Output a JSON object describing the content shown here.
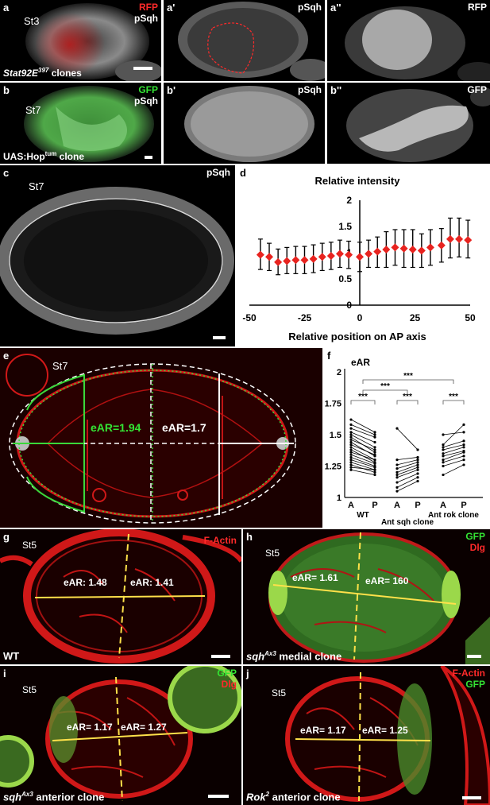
{
  "panels": {
    "a": {
      "letter": "a",
      "stage": "St3",
      "ch1": "RFP",
      "ch2": "pSqh",
      "caption_main": "Stat92E",
      "caption_sup": "397",
      "caption_tail": " clones"
    },
    "a1": {
      "letter": "a'",
      "ch": "pSqh"
    },
    "a2": {
      "letter": "a''",
      "ch": "RFP"
    },
    "b": {
      "letter": "b",
      "stage": "St7",
      "ch1": "GFP",
      "ch2": "pSqh",
      "caption_main": "UAS:Hop",
      "caption_sup": "tum",
      "caption_tail": " clone"
    },
    "b1": {
      "letter": "b'",
      "ch": "pSqh"
    },
    "b2": {
      "letter": "b''",
      "ch": "GFP"
    },
    "c": {
      "letter": "c",
      "stage": "St7",
      "ch": "pSqh"
    },
    "d": {
      "letter": "d"
    },
    "e": {
      "letter": "e",
      "stage": "St7",
      "ear_left": "eAR=1.94",
      "ear_right": "eAR=1.7"
    },
    "f": {
      "letter": "f"
    },
    "g": {
      "letter": "g",
      "stage": "St5",
      "ch": "F-Actin",
      "ear_left": "eAR: 1.48",
      "ear_right": "eAR: 1.41",
      "caption": "WT"
    },
    "h": {
      "letter": "h",
      "stage": "St5",
      "ch1": "GFP",
      "ch2": "Dlg",
      "ear_left": "eAR= 1.61",
      "ear_right": "eAR= 160",
      "caption_main": "sqh",
      "caption_sup": "Ax3",
      "caption_tail": " medial clone"
    },
    "i": {
      "letter": "i",
      "stage": "St5",
      "ch1": "GFP",
      "ch2": "Dlg",
      "ear_left": "eAR= 1.17",
      "ear_right": "eAR= 1.27",
      "caption_main": "sqh",
      "caption_sup": "Ax3",
      "caption_tail": " anterior clone"
    },
    "j": {
      "letter": "j",
      "stage": "St5",
      "ch1": "F-Actin",
      "ch2": "GFP",
      "ear_left": "eAR= 1.17",
      "ear_right": "eAR= 1.25",
      "caption_main": "Rok",
      "caption_sup": "2",
      "caption_tail": " anterior clone"
    }
  },
  "colors": {
    "red": "#ff2a2a",
    "green": "#34e534",
    "yellow": "#ffe14a",
    "marker": "#e8231f"
  },
  "chart_data": [
    {
      "type": "scatter",
      "title": "Relative intensity",
      "xlabel": "Relative position on AP axis",
      "ylabel": "",
      "xlim": [
        -50,
        50
      ],
      "ylim": [
        0,
        2
      ],
      "x_ticks": [
        "-50",
        "-25",
        "0",
        "25",
        "50"
      ],
      "y_ticks": [
        "0",
        "0.5",
        "1",
        "1.5",
        "2"
      ],
      "grid": false,
      "points": [
        {
          "x": -45,
          "y": 0.96,
          "lo": 0.68,
          "hi": 1.26
        },
        {
          "x": -41,
          "y": 0.92,
          "lo": 0.66,
          "hi": 1.18
        },
        {
          "x": -37,
          "y": 0.82,
          "lo": 0.58,
          "hi": 1.07
        },
        {
          "x": -33,
          "y": 0.84,
          "lo": 0.6,
          "hi": 1.1
        },
        {
          "x": -29,
          "y": 0.86,
          "lo": 0.6,
          "hi": 1.12
        },
        {
          "x": -25,
          "y": 0.86,
          "lo": 0.6,
          "hi": 1.12
        },
        {
          "x": -21,
          "y": 0.88,
          "lo": 0.62,
          "hi": 1.15
        },
        {
          "x": -17,
          "y": 0.92,
          "lo": 0.66,
          "hi": 1.18
        },
        {
          "x": -13,
          "y": 0.94,
          "lo": 0.68,
          "hi": 1.2
        },
        {
          "x": -9,
          "y": 0.98,
          "lo": 0.72,
          "hi": 1.24
        },
        {
          "x": -5,
          "y": 0.96,
          "lo": 0.7,
          "hi": 1.22
        },
        {
          "x": 0,
          "y": 0.92,
          "lo": 0.64,
          "hi": 1.2
        },
        {
          "x": 4,
          "y": 0.98,
          "lo": 0.72,
          "hi": 1.24
        },
        {
          "x": 8,
          "y": 1.02,
          "lo": 0.72,
          "hi": 1.3
        },
        {
          "x": 12,
          "y": 1.06,
          "lo": 0.72,
          "hi": 1.4
        },
        {
          "x": 16,
          "y": 1.1,
          "lo": 0.76,
          "hi": 1.44
        },
        {
          "x": 20,
          "y": 1.08,
          "lo": 0.72,
          "hi": 1.44
        },
        {
          "x": 24,
          "y": 1.06,
          "lo": 0.72,
          "hi": 1.44
        },
        {
          "x": 28,
          "y": 1.04,
          "lo": 0.72,
          "hi": 1.36
        },
        {
          "x": 32,
          "y": 1.1,
          "lo": 0.76,
          "hi": 1.44
        },
        {
          "x": 37,
          "y": 1.14,
          "lo": 0.82,
          "hi": 1.46
        },
        {
          "x": 41,
          "y": 1.26,
          "lo": 0.9,
          "hi": 1.66
        },
        {
          "x": 45,
          "y": 1.26,
          "lo": 0.92,
          "hi": 1.66
        },
        {
          "x": 49,
          "y": 1.24,
          "lo": 0.9,
          "hi": 1.62
        }
      ]
    },
    {
      "type": "scatter",
      "title": "eAR",
      "ylim": [
        1,
        2
      ],
      "y_ticks": [
        "1",
        "1.25",
        "1.5",
        "1.75",
        "2"
      ],
      "categories": [
        "A",
        "P",
        "A",
        "P",
        "A",
        "P"
      ],
      "group_labels": [
        "WT",
        "Ant sqh clone",
        "Ant rok clone"
      ],
      "significance": [
        "***",
        "***",
        "***",
        "***",
        "***"
      ],
      "series": [
        {
          "pairs": [
            [
              1.62,
              1.52
            ],
            [
              1.58,
              1.5
            ],
            [
              1.55,
              1.48
            ],
            [
              1.52,
              1.44
            ],
            [
              1.5,
              1.4
            ],
            [
              1.48,
              1.36
            ],
            [
              1.46,
              1.38
            ],
            [
              1.44,
              1.33
            ],
            [
              1.42,
              1.34
            ],
            [
              1.4,
              1.3
            ],
            [
              1.38,
              1.28
            ],
            [
              1.36,
              1.3
            ],
            [
              1.34,
              1.27
            ],
            [
              1.32,
              1.25
            ],
            [
              1.3,
              1.24
            ],
            [
              1.28,
              1.22
            ],
            [
              1.26,
              1.2
            ],
            [
              1.24,
              1.22
            ],
            [
              1.22,
              1.18
            ]
          ]
        },
        {
          "pairs": [
            [
              1.55,
              1.38
            ],
            [
              1.3,
              1.32
            ],
            [
              1.26,
              1.3
            ],
            [
              1.23,
              1.28
            ],
            [
              1.2,
              1.26
            ],
            [
              1.18,
              1.24
            ],
            [
              1.16,
              1.22
            ],
            [
              1.12,
              1.19
            ],
            [
              1.08,
              1.16
            ],
            [
              1.05,
              1.13
            ]
          ]
        },
        {
          "pairs": [
            [
              1.5,
              1.52
            ],
            [
              1.42,
              1.58
            ],
            [
              1.4,
              1.45
            ],
            [
              1.38,
              1.42
            ],
            [
              1.35,
              1.4
            ],
            [
              1.33,
              1.37
            ],
            [
              1.3,
              1.36
            ],
            [
              1.28,
              1.33
            ],
            [
              1.25,
              1.3
            ],
            [
              1.18,
              1.26
            ]
          ]
        }
      ]
    }
  ]
}
